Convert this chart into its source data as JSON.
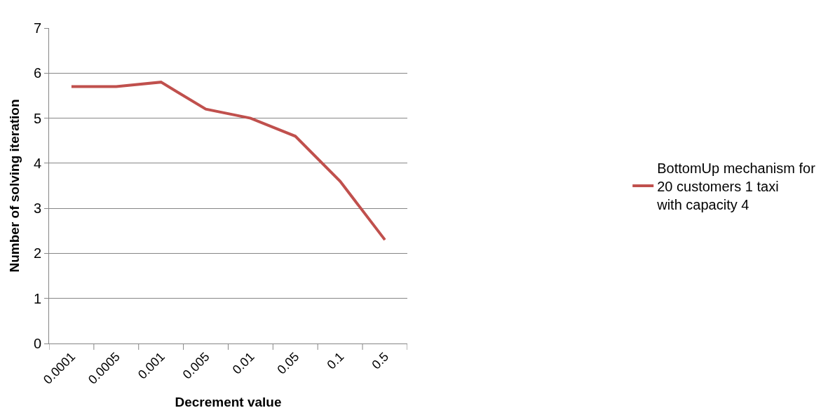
{
  "chart_data": {
    "type": "line",
    "xlabel": "Decrement value",
    "ylabel": "Number of solving iteration",
    "categories": [
      "0.0001",
      "0.0005",
      "0.001",
      "0.005",
      "0.01",
      "0.05",
      "0.1",
      "0.5"
    ],
    "series": [
      {
        "name": "BottomUp mechanism for 20 customers 1 taxi with capacity 4",
        "color": "#c0504d",
        "values": [
          5.7,
          5.7,
          5.8,
          5.2,
          5.0,
          4.6,
          3.6,
          2.3
        ]
      }
    ],
    "ylim": [
      0,
      7
    ],
    "yticks": [
      0,
      1,
      2,
      3,
      4,
      5,
      6,
      7
    ],
    "grid": "y",
    "legend": "right",
    "marker": "none",
    "line_style": "solid"
  }
}
